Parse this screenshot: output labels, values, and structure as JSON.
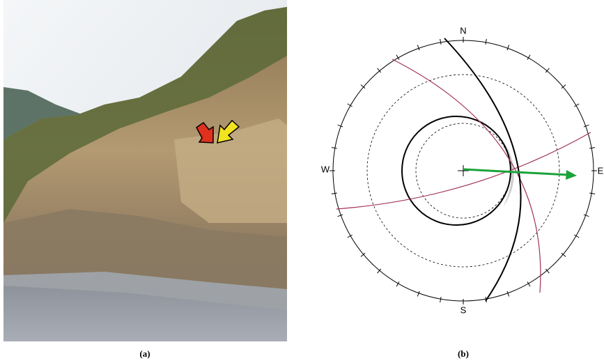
{
  "figure": {
    "panel_a": {
      "label": "(a)"
    },
    "panel_b": {
      "label": "(b)",
      "north": "N",
      "east": "E",
      "south": "S",
      "west": "W"
    }
  }
}
